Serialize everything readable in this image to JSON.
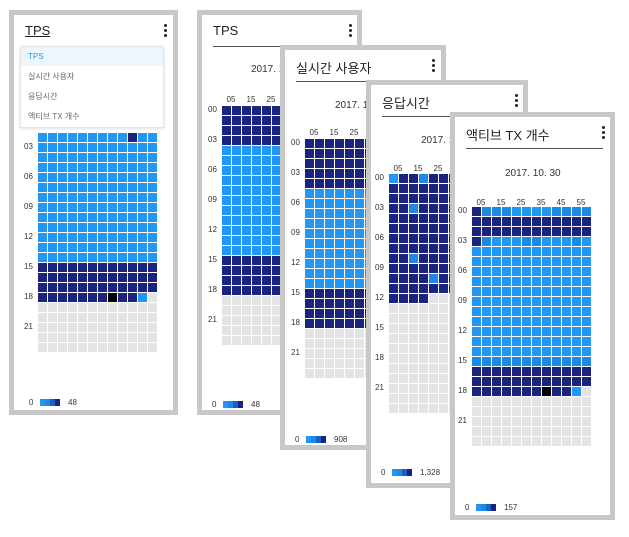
{
  "palette": {
    "empty": "#e4e4e4",
    "light": "#2196f3",
    "mid": "#1e88e5",
    "mid2": "#1565c0",
    "dark": "#1a237e",
    "max": "#000000",
    "card_border": "#c8c8c8"
  },
  "dropdown": {
    "items": [
      {
        "label": "TPS",
        "selected": true
      },
      {
        "label": "실시간 사용자",
        "selected": false
      },
      {
        "label": "응답시간",
        "selected": false
      },
      {
        "label": "액티브 TX 개수",
        "selected": false
      }
    ]
  },
  "cards": [
    {
      "title": "TPS",
      "date": "",
      "minute_labels": [],
      "hour_labels": [
        "03",
        "06",
        "09",
        "12",
        "15",
        "18",
        "21"
      ],
      "legend": {
        "min": "0",
        "max": "48"
      },
      "rows": [
        "",
        "",
        "LLLLLLLLLDLL",
        "LLLLLLLLLLLL",
        "LLLLLLLLLLLL",
        "LLLLLLLLLLLL",
        "LLLLLLLLLLLL",
        "LLLLLLLLLLLL",
        "LLLLLLLLLLLL",
        "LLLLLLLLLLLL",
        "LLLLLLLLLLLL",
        "LLLLLLLLLLLL",
        "LLLLLLLLLLLL",
        "LLLLLLLLLLLL",
        "LLLLLLLLLLLL",
        "DDDDDDDDDDDD",
        "DDDDDDDDDDDD",
        "DDDDDDDDDDDD",
        "DDDDDDDKDDLE",
        "EEEEEEEEEEEE",
        "EEEEEEEEEEEE",
        "EEEEEEEEEEEE",
        "EEEEEEEEEEEE",
        "EEEEEEEEEEEE"
      ]
    },
    {
      "title": "TPS",
      "date": "2017. 1",
      "minute_labels": [
        "05",
        "15",
        "25"
      ],
      "hour_labels": [
        "00",
        "03",
        "06",
        "09",
        "12",
        "15",
        "18",
        "21"
      ],
      "legend": {
        "min": "0",
        "max": "48"
      },
      "rows": [
        "DDDDDDDDDDDD",
        "DDDDDDDDDDDD",
        "DDDDDDDDDDDD",
        "DDDDDDDDDDDD",
        "LLLLLLLLLLLL",
        "LLLLLLLLLLLL",
        "LLLLLLLLLLLL",
        "LLLLLLLLLLLL",
        "LLLLLLLLLLLL",
        "LLLLLLLLLLLL",
        "LLLLLLLLLLLL",
        "LLLLLLLLLLLL",
        "LLLLLLLLLLLL",
        "LLLLLLLLLLLL",
        "LLLLLLLLLLLL",
        "DDDDDDDDDDDD",
        "DDDDDDDDDDDD",
        "DDDDDDDDDDDD",
        "DDDDDDDDDDDD",
        "EEEEEEEEEEEE",
        "EEEEEEEEEEEE",
        "EEEEEEEEEEEE",
        "EEEEEEEEEEEE",
        "EEEEEEEEEEEE"
      ]
    },
    {
      "title": "실시간 사용자",
      "date": "2017. 1",
      "minute_labels": [
        "05",
        "15",
        "25"
      ],
      "hour_labels": [
        "00",
        "03",
        "06",
        "09",
        "12",
        "15",
        "18",
        "21"
      ],
      "legend": {
        "min": "0",
        "max": "908"
      },
      "rows": [
        "DDDDDDDDDDDD",
        "DDDDDDDDDDDD",
        "DDDDDDDDDDDD",
        "DDDDDDDDDDDD",
        "DDDDDDDDDDDD",
        "LLLLLLLLLLLL",
        "LLLLLLLLLLLL",
        "LLLLLLLLLLLL",
        "LLLLLLLLLLLL",
        "LLLLLLLLLLLL",
        "LLLLLLLLLLLL",
        "LLLLLLLLLLLL",
        "LLLLLLLLLLLL",
        "LLLLLLLLLLLL",
        "LLLLLLLLLLLL",
        "DDDDDDDDDDDD",
        "DDDDDDDDDDDD",
        "DDDDDDDDDDDD",
        "DDDDDDDDDDDD",
        "EEEEEEEEEEEE",
        "EEEEEEEEEEEE",
        "EEEEEEEEEEEE",
        "EEEEEEEEEEEE",
        "EEEEEEEEEEEE"
      ]
    },
    {
      "title": "응답시간",
      "date": "2017. 1",
      "minute_labels": [
        "05",
        "15",
        "25"
      ],
      "hour_labels": [
        "00",
        "03",
        "06",
        "09",
        "12",
        "15",
        "18",
        "21"
      ],
      "legend": {
        "min": "0",
        "max": "1,328"
      },
      "rows": [
        "LDDMDDDLDDDD",
        "DDDDDDDDDDDD",
        "DDDDDDDDDDDD",
        "DDMDDDDDDDDD",
        "DDDDDDDDDDDD",
        "DDDDDDDDDDDD",
        "DDDDDDDDDDDD",
        "DDDDDDDDDDDD",
        "DDMDDDDDDDDD",
        "DDDDDDDDDDDD",
        "DDDDMDDDDDDD",
        "DDDDDDDDDDDD",
        "DDDDEEEEEEEE",
        "EEEEEEEEEEEE",
        "EEEEEEEEEEEE",
        "EEEEEEEEEEEE",
        "EEEEEEEEEEEE",
        "EEEEEEEEEEEE",
        "EEEEEEEEEEEE",
        "EEEEEEEEEEEE",
        "EEEEEEEEEEEE",
        "EEEEEEEEEEEE",
        "EEEEEEEEEEEE",
        "EEEEEEEEEEEE"
      ]
    },
    {
      "title": "액티브 TX 개수",
      "date": "2017. 10. 30",
      "minute_labels": [
        "05",
        "15",
        "25",
        "35",
        "45",
        "55"
      ],
      "hour_labels": [
        "00",
        "03",
        "06",
        "09",
        "12",
        "15",
        "18",
        "21"
      ],
      "legend": {
        "min": "0",
        "max": "157"
      },
      "rows": [
        "DMMMLLLLMMMM",
        "DDDDDDDDDDDD",
        "DDDDDDDDDDDD",
        "DMLLLMMLLLML",
        "LLLLLLLLLLLL",
        "LLLLLLLLLLLL",
        "LLLLLLLLLLLL",
        "LLLLLLLLLLLL",
        "LLLLLLLLLLLL",
        "LLLLLLLLLLLL",
        "LLLLLLLLLLLL",
        "LLLLLLLLLLLL",
        "LLLLLLLLLLLL",
        "LLLLLLLLLLLL",
        "LLLLLLLLLLLL",
        "MMMMMMMMMMMM",
        "DDDDDDDDDDDD",
        "DDDDDDDDDDDD",
        "DDDDDDDKDDLE",
        "EEEEEEEEEEEE",
        "EEEEEEEEEEEE",
        "EEEEEEEEEEEE",
        "EEEEEEEEEEEE",
        "EEEEEEEEEEEE"
      ]
    }
  ]
}
